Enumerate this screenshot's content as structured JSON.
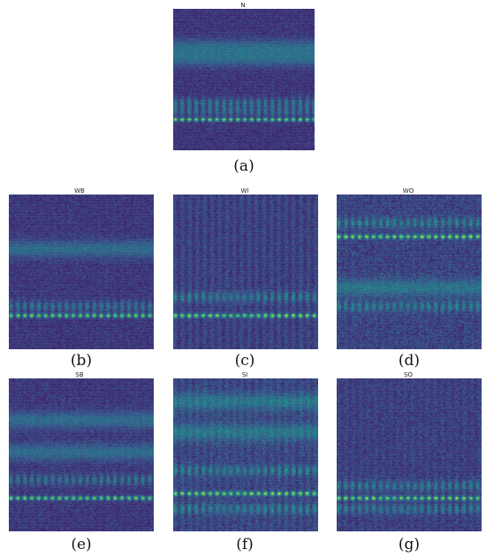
{
  "figure": {
    "panels": [
      {
        "id": "a",
        "title": "N",
        "caption": "(a)",
        "bands": [
          0.78
        ],
        "glow": [
          0.66,
          0.72
        ],
        "haze": [
          0.27,
          0.35
        ],
        "stripes": 0.1,
        "colorful": 0.2
      },
      {
        "id": "b",
        "title": "WB",
        "caption": "(b)",
        "bands": [
          0.78
        ],
        "glow": [
          0.72
        ],
        "haze": [
          0.35
        ],
        "stripes": 0.15,
        "colorful": 0.25
      },
      {
        "id": "c",
        "title": "WI",
        "caption": "(c)",
        "bands": [
          0.78
        ],
        "glow": [
          0.66
        ],
        "haze": [],
        "stripes": 0.9,
        "colorful": 0.2
      },
      {
        "id": "d",
        "title": "WO",
        "caption": "(d)",
        "bands": [
          0.27
        ],
        "glow": [
          0.18,
          0.72
        ],
        "haze": [
          0.6
        ],
        "stripes": 0.35,
        "colorful": 0.55
      },
      {
        "id": "e",
        "title": "SB",
        "caption": "(e)",
        "bands": [
          0.78
        ],
        "glow": [
          0.66
        ],
        "haze": [
          0.27,
          0.48
        ],
        "stripes": 0.2,
        "colorful": 0.25
      },
      {
        "id": "f",
        "title": "SI",
        "caption": "(f)",
        "bands": [
          0.75
        ],
        "glow": [
          0.6,
          0.85
        ],
        "haze": [
          0.15,
          0.35
        ],
        "stripes": 0.8,
        "colorful": 0.45
      },
      {
        "id": "g",
        "title": "SO",
        "caption": "(g)",
        "bands": [
          0.78
        ],
        "glow": [
          0.7,
          0.85
        ],
        "haze": [],
        "stripes": 0.5,
        "colorful": 0.35
      }
    ]
  }
}
